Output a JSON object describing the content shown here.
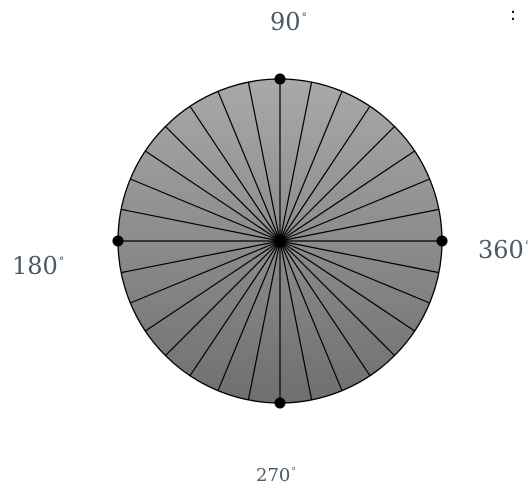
{
  "labels": {
    "top": "90",
    "left": "180",
    "right": "360",
    "bottom": "270",
    "degree_symbol": "°",
    "corner_mark": ":"
  },
  "colors": {
    "disc_fill_top": "#a9a9a9",
    "disc_fill_bottom": "#6f6f6f",
    "lines": "#000000",
    "dots": "#000000",
    "label_text": "#4a5a66"
  },
  "disc": {
    "radial_line_count": 32,
    "highlighted_points_degrees": [
      90,
      180,
      270,
      360
    ]
  }
}
